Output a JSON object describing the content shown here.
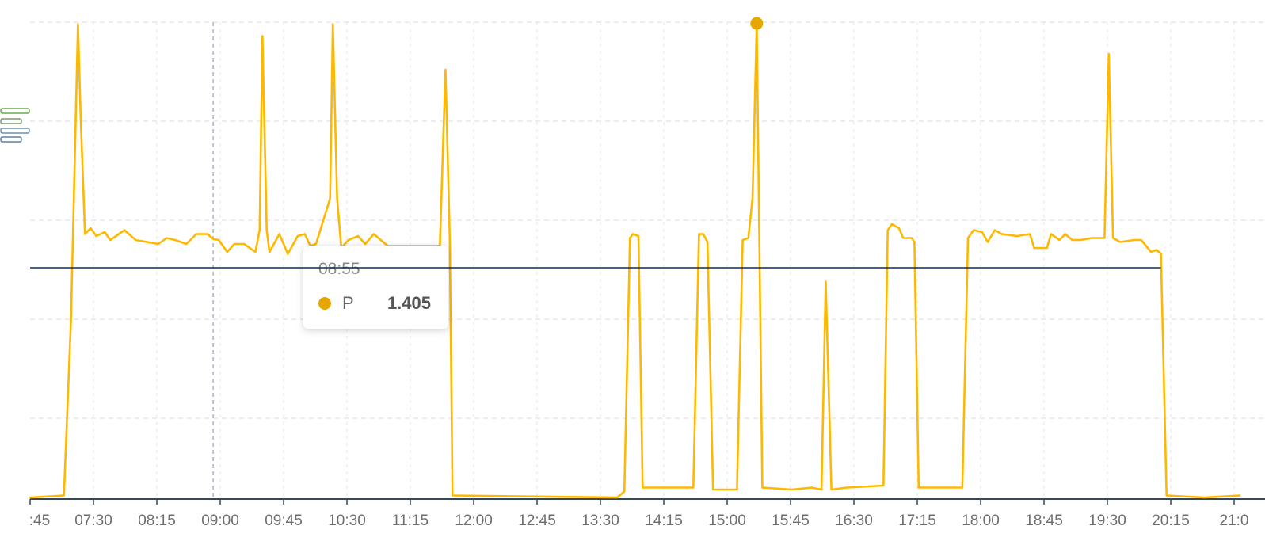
{
  "chart_data": {
    "type": "line",
    "title": "",
    "xlabel": "",
    "ylabel": "",
    "x_ticks": [
      ":45",
      "07:30",
      "08:15",
      "09:00",
      "09:45",
      "10:30",
      "11:15",
      "12:00",
      "12:45",
      "13:30",
      "14:15",
      "15:00",
      "15:45",
      "16:30",
      "17:15",
      "18:00",
      "18:45",
      "19:30",
      "20:15",
      "21:0"
    ],
    "xlim": [
      "06:45",
      "21:00"
    ],
    "ylim": [
      0.1,
      2.5
    ],
    "y_gridlines": [
      0.5,
      1.0,
      1.5,
      2.0,
      2.5
    ],
    "y_tick_labels_visible": false,
    "grid": true,
    "series": [
      {
        "name": "P",
        "color": "#FFB800",
        "points": [
          [
            "06:45",
            0.1
          ],
          [
            "07:09",
            0.11
          ],
          [
            "07:14",
            1.0
          ],
          [
            "07:19",
            2.49
          ],
          [
            "07:21",
            2.0
          ],
          [
            "07:24",
            1.43
          ],
          [
            "07:28",
            1.46
          ],
          [
            "07:32",
            1.42
          ],
          [
            "07:38",
            1.44
          ],
          [
            "07:42",
            1.4
          ],
          [
            "07:52",
            1.45
          ],
          [
            "08:00",
            1.4
          ],
          [
            "08:16",
            1.38
          ],
          [
            "08:22",
            1.41
          ],
          [
            "08:28",
            1.4
          ],
          [
            "08:36",
            1.38
          ],
          [
            "08:43",
            1.43
          ],
          [
            "08:51",
            1.43
          ],
          [
            "08:55",
            1.405
          ],
          [
            "08:59",
            1.4
          ],
          [
            "09:05",
            1.34
          ],
          [
            "09:10",
            1.38
          ],
          [
            "09:17",
            1.38
          ],
          [
            "09:25",
            1.34
          ],
          [
            "09:28",
            1.45
          ],
          [
            "09:30",
            2.43
          ],
          [
            "09:33",
            1.45
          ],
          [
            "09:35",
            1.34
          ],
          [
            "09:42",
            1.43
          ],
          [
            "09:48",
            1.33
          ],
          [
            "09:55",
            1.42
          ],
          [
            "10:00",
            1.43
          ],
          [
            "10:04",
            1.37
          ],
          [
            "10:08",
            1.38
          ],
          [
            "10:18",
            1.61
          ],
          [
            "10:20",
            2.49
          ],
          [
            "10:23",
            1.61
          ],
          [
            "10:26",
            1.36
          ],
          [
            "10:31",
            1.4
          ],
          [
            "10:38",
            1.42
          ],
          [
            "10:43",
            1.38
          ],
          [
            "10:49",
            1.43
          ],
          [
            "10:54",
            1.4
          ],
          [
            "10:59",
            1.37
          ],
          [
            "11:05",
            1.37
          ],
          [
            "11:36",
            1.37
          ],
          [
            "11:40",
            2.26
          ],
          [
            "11:43",
            1.41
          ],
          [
            "11:45",
            0.11
          ],
          [
            "13:42",
            0.1
          ],
          [
            "13:47",
            0.13
          ],
          [
            "13:51",
            1.41
          ],
          [
            "13:53",
            1.43
          ],
          [
            "13:57",
            1.42
          ],
          [
            "14:00",
            0.15
          ],
          [
            "14:36",
            0.15
          ],
          [
            "14:40",
            1.43
          ],
          [
            "14:43",
            1.43
          ],
          [
            "14:46",
            1.39
          ],
          [
            "14:50",
            0.14
          ],
          [
            "15:07",
            0.14
          ],
          [
            "15:11",
            1.4
          ],
          [
            "15:15",
            1.41
          ],
          [
            "15:18",
            1.61
          ],
          [
            "15:21",
            2.49
          ],
          [
            "15:25",
            0.15
          ],
          [
            "15:46",
            0.14
          ],
          [
            "16:00",
            0.15
          ],
          [
            "16:07",
            0.14
          ],
          [
            "16:10",
            1.19
          ],
          [
            "16:14",
            0.14
          ],
          [
            "16:25",
            0.15
          ],
          [
            "16:51",
            0.16
          ],
          [
            "16:54",
            1.45
          ],
          [
            "16:57",
            1.48
          ],
          [
            "17:02",
            1.46
          ],
          [
            "17:05",
            1.41
          ],
          [
            "17:11",
            1.41
          ],
          [
            "17:13",
            1.39
          ],
          [
            "17:16",
            0.15
          ],
          [
            "17:47",
            0.15
          ],
          [
            "17:51",
            1.41
          ],
          [
            "17:55",
            1.45
          ],
          [
            "18:01",
            1.44
          ],
          [
            "18:05",
            1.39
          ],
          [
            "18:10",
            1.45
          ],
          [
            "18:15",
            1.43
          ],
          [
            "18:26",
            1.42
          ],
          [
            "18:35",
            1.43
          ],
          [
            "18:38",
            1.36
          ],
          [
            "18:47",
            1.36
          ],
          [
            "18:50",
            1.43
          ],
          [
            "18:56",
            1.4
          ],
          [
            "19:00",
            1.43
          ],
          [
            "19:05",
            1.4
          ],
          [
            "19:11",
            1.4
          ],
          [
            "19:19",
            1.41
          ],
          [
            "19:28",
            1.41
          ],
          [
            "19:31",
            2.34
          ],
          [
            "19:34",
            1.41
          ],
          [
            "19:39",
            1.39
          ],
          [
            "19:49",
            1.4
          ],
          [
            "19:54",
            1.4
          ],
          [
            "20:01",
            1.34
          ],
          [
            "20:05",
            1.35
          ],
          [
            "20:08",
            1.33
          ],
          [
            "20:12",
            0.11
          ],
          [
            "20:39",
            0.1
          ],
          [
            "21:04",
            0.11
          ]
        ]
      }
    ],
    "max_marker": {
      "time": "15:21",
      "value": 2.49,
      "color": "#E6A800"
    },
    "reference_line": {
      "value": 1.26,
      "from": "06:45",
      "to": "20:08",
      "color": "#0D2A5C"
    },
    "crosshair_time": "08:55",
    "axis_color": "#34495E"
  },
  "tooltip": {
    "time": "08:55",
    "series_name": "P",
    "value": "1.405",
    "dot_color": "#E6A800"
  },
  "side_icon": "bar-list-toggle-icon"
}
